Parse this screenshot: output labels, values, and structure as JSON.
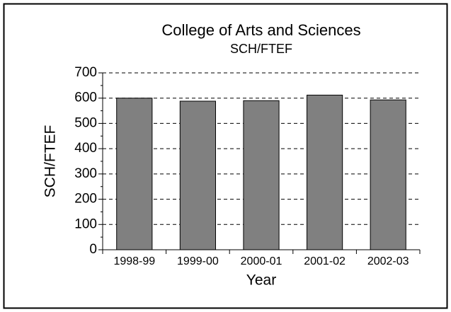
{
  "chart_data": {
    "type": "bar",
    "title": "College of Arts and Sciences",
    "subtitle": "SCH/FTEF",
    "x_label": "Year",
    "y_label": "SCH/FTEF",
    "categories": [
      "1998-99",
      "1999-00",
      "2000-01",
      "2001-02",
      "2002-03"
    ],
    "values": [
      600,
      588,
      590,
      612,
      593
    ],
    "color": "#808080",
    "ylim": [
      0,
      700
    ],
    "yticks": [
      0,
      100,
      200,
      300,
      400,
      500,
      600,
      700
    ],
    "grid": true
  }
}
